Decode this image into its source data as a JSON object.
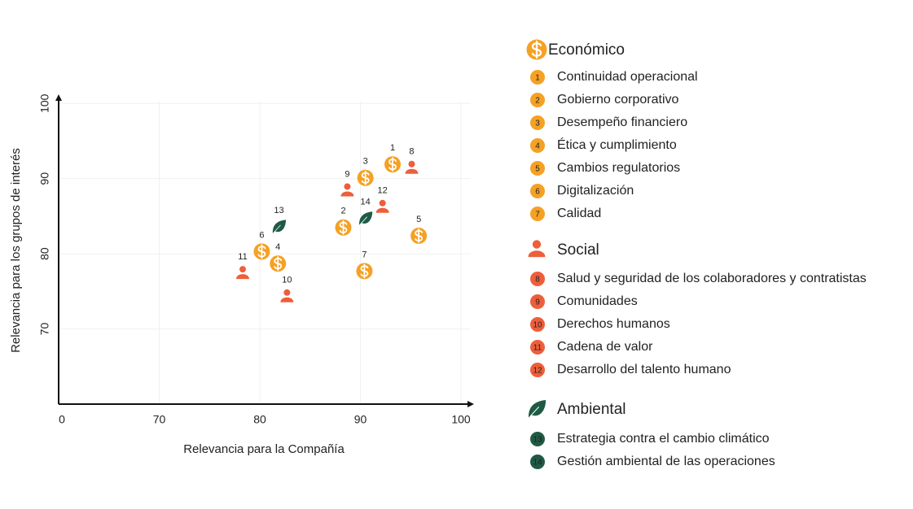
{
  "chart_data": {
    "type": "scatter",
    "xlabel": "Relevancia para la Compañía",
    "ylabel": "Relevancia para los grupos de interés",
    "xlim": [
      60,
      101
    ],
    "ylim": [
      60,
      101
    ],
    "xticks": [
      {
        "value": 60,
        "label": "0"
      },
      70,
      80,
      90,
      100
    ],
    "yticks": [
      70,
      80,
      90,
      100
    ],
    "grid": true,
    "series": [
      {
        "name": "Económico",
        "color": "#f5a124",
        "marker": "dollar",
        "labels": [
          "1",
          "2",
          "3",
          "4",
          "5",
          "6",
          "7"
        ],
        "x": [
          93.2,
          88.3,
          90.5,
          81.8,
          95.8,
          80.2,
          90.4
        ],
        "y": [
          91.9,
          83.5,
          90.1,
          78.7,
          82.4,
          80.3,
          77.7
        ],
        "items": [
          "Continuidad operacional",
          "Gobierno corporativo",
          "Desempeño financiero",
          "Ética y cumplimiento",
          "Cambios regulatorios",
          "Digitalización",
          "Calidad"
        ]
      },
      {
        "name": "Social",
        "color": "#ee5e3b",
        "marker": "person",
        "labels": [
          "8",
          "9",
          "10",
          "11",
          "12"
        ],
        "x": [
          95.1,
          88.7,
          82.7,
          78.3,
          92.2
        ],
        "y": [
          91.4,
          88.4,
          74.3,
          77.4,
          86.2
        ],
        "items": [
          "Salud y seguridad de los colaboradores y contratistas",
          "Comunidades",
          "Derechos humanos",
          "Cadena de valor",
          "Desarrollo del talento humano"
        ]
      },
      {
        "name": "Ambiental",
        "color": "#1f5a45",
        "marker": "leaf",
        "labels": [
          "13",
          "14"
        ],
        "x": [
          81.9,
          90.5
        ],
        "y": [
          83.6,
          84.7
        ],
        "items": [
          "Estrategia contra el cambio climático",
          "Gestión ambiental de las operaciones"
        ]
      }
    ]
  }
}
